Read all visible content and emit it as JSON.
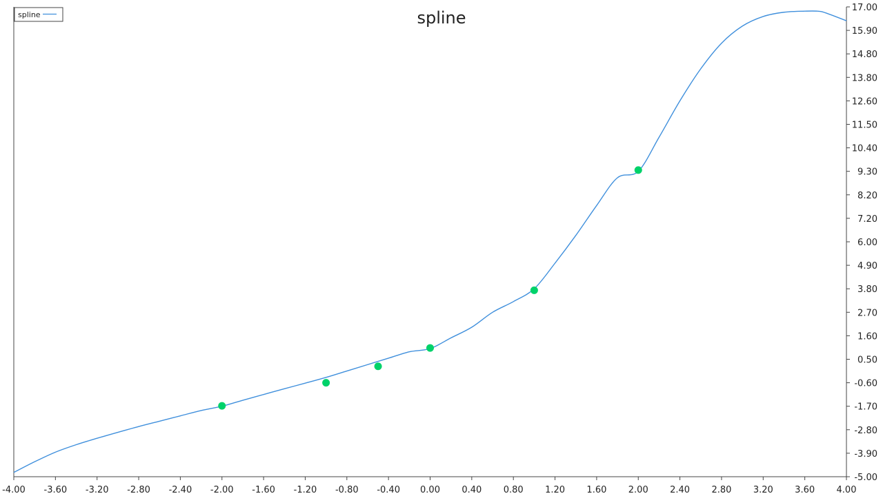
{
  "chart_data": {
    "type": "line",
    "title": "spline",
    "xlabel": "",
    "ylabel": "",
    "xlim": [
      -4.0,
      4.0
    ],
    "ylim": [
      -5.0,
      17.0
    ],
    "x_ticks": [
      "-4.00",
      "-3.60",
      "-3.20",
      "-2.80",
      "-2.40",
      "-2.00",
      "-1.60",
      "-1.20",
      "-0.80",
      "-0.40",
      "0.00",
      "0.40",
      "0.80",
      "1.20",
      "1.60",
      "2.00",
      "2.40",
      "2.80",
      "3.20",
      "3.60",
      "4.00"
    ],
    "y_ticks": [
      "17.00",
      "15.90",
      "14.80",
      "13.80",
      "12.60",
      "11.50",
      "10.40",
      "9.30",
      "8.20",
      "7.20",
      "6.00",
      "4.90",
      "3.80",
      "2.70",
      "1.60",
      "0.50",
      "-0.60",
      "-1.70",
      "-2.80",
      "-3.90",
      "-5.00"
    ],
    "legend": {
      "position": "top-left",
      "entries": [
        "spline"
      ]
    },
    "grid": false,
    "series": [
      {
        "name": "spline",
        "color": "#3f8fdc",
        "x": [
          -4.0,
          -3.8,
          -3.6,
          -3.4,
          -3.2,
          -3.0,
          -2.8,
          -2.6,
          -2.4,
          -2.2,
          -2.0,
          -1.8,
          -1.6,
          -1.4,
          -1.2,
          -1.0,
          -0.8,
          -0.6,
          -0.4,
          -0.2,
          0.0,
          0.2,
          0.4,
          0.6,
          0.8,
          1.0,
          1.2,
          1.4,
          1.6,
          1.8,
          2.0,
          2.2,
          2.4,
          2.6,
          2.8,
          3.0,
          3.2,
          3.4,
          3.6,
          3.72,
          3.8,
          4.0
        ],
        "y": [
          -4.8,
          -4.3,
          -3.85,
          -3.5,
          -3.2,
          -2.92,
          -2.65,
          -2.4,
          -2.15,
          -1.9,
          -1.7,
          -1.42,
          -1.15,
          -0.88,
          -0.62,
          -0.35,
          -0.05,
          0.25,
          0.55,
          0.85,
          1.0,
          1.5,
          2.0,
          2.7,
          3.2,
          3.8,
          5.0,
          6.3,
          7.7,
          9.0,
          9.3,
          10.9,
          12.6,
          14.1,
          15.3,
          16.1,
          16.55,
          16.75,
          16.8,
          16.8,
          16.72,
          16.35
        ]
      },
      {
        "name": "",
        "color": "#00d26a",
        "marker": "point",
        "x": [
          -2.0,
          -1.0,
          -0.5,
          0.0,
          1.0,
          2.0
        ],
        "y": [
          -1.68,
          -0.6,
          0.17,
          1.03,
          3.73,
          9.36
        ]
      }
    ]
  }
}
